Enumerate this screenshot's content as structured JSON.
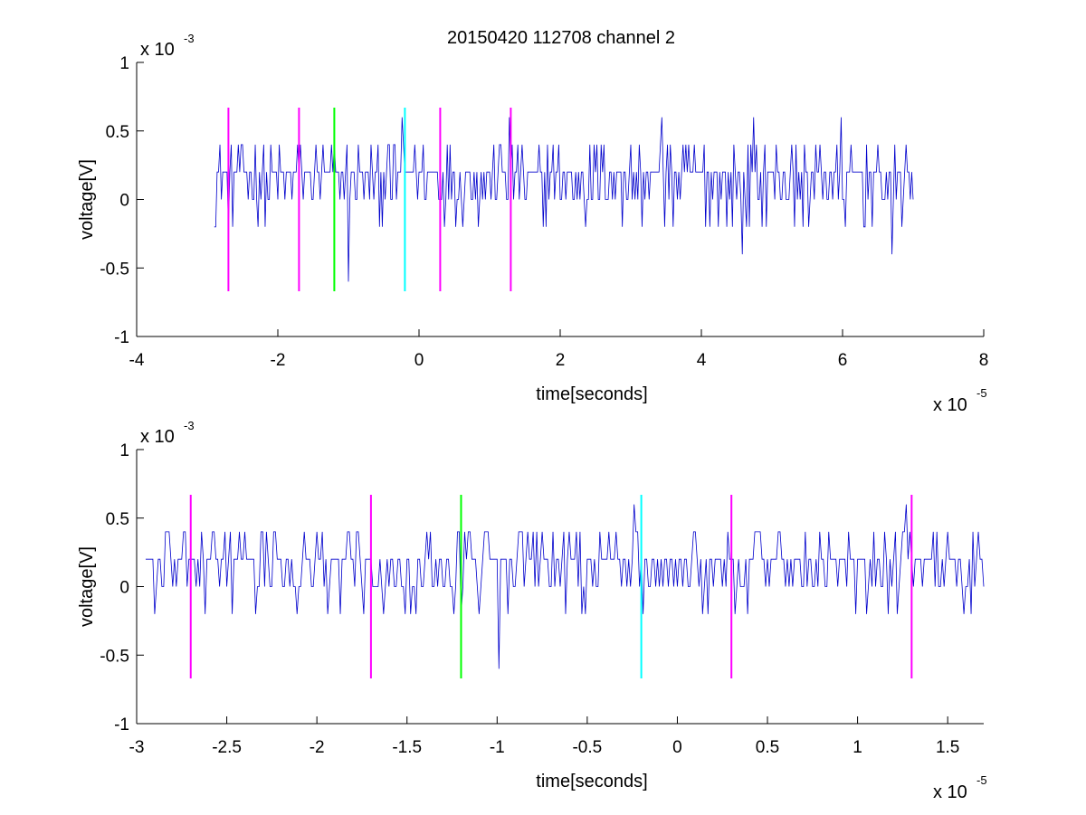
{
  "figure": {
    "title": "20150420 112708 channel 2"
  },
  "chart_data": [
    {
      "type": "line",
      "xlabel": "time[seconds]",
      "ylabel": "voltage[V]",
      "x_exponent": "x 10",
      "x_exponent_power": "-5",
      "y_exponent": "x 10",
      "y_exponent_power": "-3",
      "xlim": [
        -4,
        8
      ],
      "ylim": [
        -1,
        1
      ],
      "x_ticks": [
        -4,
        -2,
        0,
        2,
        4,
        6,
        8
      ],
      "x_tick_labels": [
        "-4",
        "-2",
        "0",
        "2",
        "4",
        "6",
        "8"
      ],
      "y_ticks": [
        -1,
        -0.5,
        0,
        0.5,
        1
      ],
      "y_tick_labels": [
        "-1",
        "-0.5",
        "0",
        "0.5",
        "1"
      ],
      "grid": false,
      "series_color": "#0000cc",
      "signal": {
        "x_start": -2.9,
        "x_end": 7.0,
        "step": 0.02,
        "levels": [
          -0.2,
          0,
          0.2,
          0.4
        ],
        "mean": 0.15,
        "spikes": [
          {
            "x": -1.0,
            "y": -0.6
          },
          {
            "x": 4.73,
            "y": 0.6
          },
          {
            "x": 5.97,
            "y": 0.6
          },
          {
            "x": -0.23,
            "y": 0.6
          },
          {
            "x": 1.28,
            "y": 0.6
          },
          {
            "x": 4.58,
            "y": -0.4
          },
          {
            "x": 6.7,
            "y": -0.4
          },
          {
            "x": 3.45,
            "y": 0.6
          }
        ]
      },
      "markers": [
        {
          "x": -2.7,
          "y": [
            -0.67,
            0.67
          ],
          "color": "#ff00ff"
        },
        {
          "x": -1.7,
          "y": [
            -0.67,
            0.67
          ],
          "color": "#ff00ff"
        },
        {
          "x": -1.2,
          "y": [
            -0.67,
            0.67
          ],
          "color": "#00ff00"
        },
        {
          "x": -0.2,
          "y": [
            -0.67,
            0.67
          ],
          "color": "#00ffff"
        },
        {
          "x": 0.3,
          "y": [
            -0.67,
            0.67
          ],
          "color": "#ff00ff"
        },
        {
          "x": 1.3,
          "y": [
            -0.67,
            0.67
          ],
          "color": "#ff00ff"
        }
      ]
    },
    {
      "type": "line",
      "xlabel": "time[seconds]",
      "ylabel": "voltage[V]",
      "x_exponent": "x 10",
      "x_exponent_power": "-5",
      "y_exponent": "x 10",
      "y_exponent_power": "-3",
      "xlim": [
        -3.0,
        1.7
      ],
      "ylim": [
        -1,
        1
      ],
      "x_ticks": [
        -3,
        -2.5,
        -2,
        -1.5,
        -1,
        -0.5,
        0,
        0.5,
        1,
        1.5
      ],
      "x_tick_labels": [
        "-3",
        "-2.5",
        "-2",
        "-1.5",
        "-1",
        "-0.5",
        "0",
        "0.5",
        "1",
        "1.5"
      ],
      "y_ticks": [
        -1,
        -0.5,
        0,
        0.5,
        1
      ],
      "y_tick_labels": [
        "-1",
        "-0.5",
        "0",
        "0.5",
        "1"
      ],
      "grid": false,
      "series_color": "#0000cc",
      "signal": {
        "x_start": -2.95,
        "x_end": 1.7,
        "step": 0.01,
        "levels": [
          -0.2,
          0,
          0.2,
          0.4
        ],
        "mean": 0.15,
        "spikes": [
          {
            "x": -0.99,
            "y": -0.6
          },
          {
            "x": -0.24,
            "y": 0.6
          },
          {
            "x": 1.27,
            "y": 0.6
          },
          {
            "x": -2.0,
            "y": 0.4
          },
          {
            "x": -1.2,
            "y": -0.2
          }
        ]
      },
      "markers": [
        {
          "x": -2.7,
          "y": [
            -0.67,
            0.67
          ],
          "color": "#ff00ff"
        },
        {
          "x": -1.7,
          "y": [
            -0.67,
            0.67
          ],
          "color": "#ff00ff"
        },
        {
          "x": -1.2,
          "y": [
            -0.67,
            0.67
          ],
          "color": "#00ff00"
        },
        {
          "x": -0.2,
          "y": [
            -0.67,
            0.67
          ],
          "color": "#00ffff"
        },
        {
          "x": 0.3,
          "y": [
            -0.67,
            0.67
          ],
          "color": "#ff00ff"
        },
        {
          "x": 1.3,
          "y": [
            -0.67,
            0.67
          ],
          "color": "#ff00ff"
        }
      ]
    }
  ]
}
